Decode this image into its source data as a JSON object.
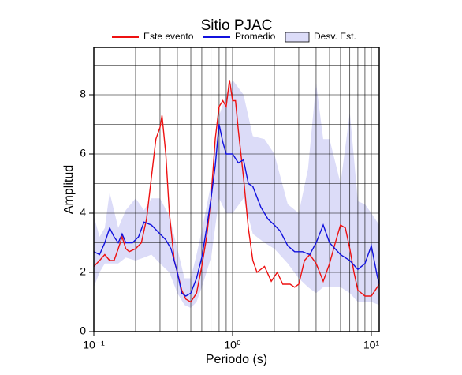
{
  "chart_data": {
    "type": "line",
    "title": "Sitio PJAC",
    "x_label": "Periodo (s)",
    "y_label": "Amplitud",
    "log_x": true,
    "grid": true,
    "legend": "top",
    "xlim": [
      0.1,
      11.4
    ],
    "ylim": [
      0,
      9.6
    ],
    "xticks": [
      {
        "value": 0.1,
        "label": "10⁻¹"
      },
      {
        "value": 1,
        "label": "10⁰"
      },
      {
        "value": 10,
        "label": "10¹"
      }
    ],
    "yticks": [
      0,
      2,
      4,
      6,
      8
    ],
    "xgrid": [
      0.2,
      0.3,
      0.4,
      0.5,
      0.6,
      0.7,
      0.8,
      0.9,
      1,
      2,
      3,
      4,
      5,
      6,
      7,
      8,
      9,
      10
    ],
    "ygrid": [
      1,
      2,
      3,
      4,
      5,
      6,
      7,
      8,
      9
    ],
    "band": {
      "name": "Desv. Est.",
      "color": "#dcdcf8",
      "x": [
        0.1,
        0.11,
        0.12,
        0.13,
        0.15,
        0.17,
        0.2,
        0.23,
        0.26,
        0.3,
        0.35,
        0.4,
        0.45,
        0.5,
        0.55,
        0.6,
        0.7,
        0.8,
        0.9,
        1.0,
        1.2,
        1.4,
        1.7,
        2.0,
        2.5,
        3,
        3.5,
        4,
        4.5,
        5,
        6,
        7,
        8,
        9,
        10,
        11.4
      ],
      "upper": [
        3.9,
        3.2,
        3.5,
        4.7,
        3.5,
        4.1,
        4.5,
        4.1,
        4.5,
        4.5,
        3.9,
        2.8,
        1.8,
        1.8,
        2.6,
        3.4,
        5.0,
        7.3,
        8.0,
        8.5,
        8.0,
        6.6,
        6.5,
        6.0,
        4.3,
        4.0,
        5.5,
        8.4,
        6.5,
        6.5,
        5.0,
        7.4,
        4.4,
        4.3,
        4.0,
        3.6
      ],
      "lower": [
        1.5,
        2.0,
        2.3,
        2.3,
        2.3,
        2.5,
        2.4,
        2.5,
        2.6,
        2.3,
        2.0,
        1.3,
        0.9,
        0.8,
        1.0,
        1.5,
        2.5,
        4.5,
        4.0,
        4.0,
        4.5,
        3.3,
        3.0,
        2.8,
        2.3,
        1.8,
        1.5,
        1.3,
        1.5,
        1.5,
        1.5,
        1.3,
        1.0,
        1.0,
        1.0,
        0.9
      ]
    },
    "series": [
      {
        "name": "Este evento",
        "color": "#ee1111",
        "x": [
          0.1,
          0.11,
          0.12,
          0.13,
          0.14,
          0.15,
          0.16,
          0.17,
          0.18,
          0.2,
          0.22,
          0.24,
          0.26,
          0.28,
          0.3,
          0.31,
          0.33,
          0.35,
          0.38,
          0.4,
          0.43,
          0.46,
          0.5,
          0.55,
          0.6,
          0.65,
          0.7,
          0.75,
          0.8,
          0.85,
          0.9,
          0.95,
          1.0,
          1.05,
          1.1,
          1.2,
          1.3,
          1.4,
          1.5,
          1.7,
          1.9,
          2.1,
          2.3,
          2.6,
          2.8,
          3.0,
          3.3,
          3.6,
          4.0,
          4.5,
          5.0,
          5.5,
          6.0,
          6.5,
          7.0,
          7.5,
          8.0,
          9,
          10,
          11.4
        ],
        "values": [
          2.2,
          2.4,
          2.6,
          2.4,
          2.4,
          2.8,
          3.2,
          2.8,
          2.7,
          2.8,
          3.0,
          3.8,
          5.2,
          6.5,
          6.9,
          7.3,
          6.0,
          4.0,
          2.4,
          2.0,
          1.4,
          1.1,
          1.0,
          1.3,
          2.2,
          3.2,
          4.5,
          6.5,
          7.6,
          7.8,
          7.6,
          8.5,
          7.8,
          7.8,
          6.8,
          5.2,
          3.5,
          2.4,
          2.0,
          2.2,
          1.7,
          2.0,
          1.6,
          1.6,
          1.5,
          1.6,
          2.4,
          2.6,
          2.3,
          1.7,
          2.3,
          3.0,
          3.6,
          3.5,
          2.8,
          2.0,
          1.4,
          1.2,
          1.2,
          1.6
        ]
      },
      {
        "name": "Promedio",
        "color": "#1111dd",
        "x": [
          0.1,
          0.11,
          0.12,
          0.13,
          0.14,
          0.15,
          0.16,
          0.17,
          0.19,
          0.21,
          0.23,
          0.26,
          0.3,
          0.33,
          0.36,
          0.4,
          0.43,
          0.46,
          0.5,
          0.55,
          0.6,
          0.65,
          0.7,
          0.75,
          0.8,
          0.85,
          0.9,
          1.0,
          1.1,
          1.2,
          1.3,
          1.4,
          1.6,
          1.8,
          2.0,
          2.2,
          2.5,
          2.8,
          3.2,
          3.6,
          4.0,
          4.5,
          5.0,
          6.0,
          7.0,
          8.0,
          9.0,
          10,
          11,
          11.4
        ],
        "values": [
          2.7,
          2.6,
          3.0,
          3.5,
          3.2,
          3.0,
          3.3,
          3.0,
          3.0,
          3.2,
          3.7,
          3.6,
          3.3,
          3.1,
          2.8,
          2.0,
          1.3,
          1.2,
          1.3,
          1.8,
          2.5,
          3.5,
          4.5,
          5.6,
          7.0,
          6.4,
          6.0,
          6.0,
          5.7,
          5.8,
          5.0,
          4.9,
          4.2,
          3.8,
          3.6,
          3.4,
          2.9,
          2.7,
          2.7,
          2.6,
          3.0,
          3.6,
          3.0,
          2.6,
          2.4,
          2.1,
          2.3,
          2.9,
          1.9,
          1.6
        ]
      }
    ]
  }
}
